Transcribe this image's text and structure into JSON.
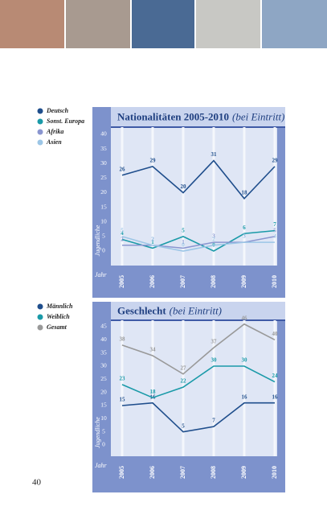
{
  "page_number": "40",
  "chart_data": [
    {
      "type": "line",
      "title": "Nationalitäten 2005-2010",
      "title_note": "(bei Eintritt)",
      "y_axis_label": "Jugendliche",
      "x_axis_label": "Jahr",
      "categories": [
        "2005",
        "2006",
        "2007",
        "2008",
        "2009",
        "2010"
      ],
      "series": [
        {
          "name": "Deutsch",
          "color": "#1f4e8c",
          "values": [
            26,
            29,
            20,
            31,
            18,
            29
          ]
        },
        {
          "name": "Sonst. Europa",
          "color": "#1a9aa8",
          "values": [
            4,
            1,
            5,
            0,
            6,
            7
          ]
        },
        {
          "name": "Afrika",
          "color": "#8a96d0",
          "values": [
            2,
            2,
            1,
            3,
            3,
            5
          ]
        },
        {
          "name": "Asien",
          "color": "#9cc6e6",
          "values": [
            5,
            2,
            0,
            2,
            3,
            3
          ]
        }
      ],
      "ylim": [
        0,
        40
      ],
      "yticks": [
        0,
        5,
        10,
        15,
        20,
        25,
        30,
        35,
        40
      ]
    },
    {
      "type": "line",
      "title": "Geschlecht",
      "title_note": "(bei Eintritt)",
      "y_axis_label": "Jugendliche",
      "x_axis_label": "Jahr",
      "categories": [
        "2005",
        "2006",
        "2007",
        "2008",
        "2009",
        "2010"
      ],
      "series": [
        {
          "name": "Männlich",
          "color": "#1f4e8c",
          "values": [
            15,
            16,
            5,
            7,
            16,
            16
          ]
        },
        {
          "name": "Weiblich",
          "color": "#1a9aa8",
          "values": [
            23,
            18,
            22,
            30,
            30,
            24
          ]
        },
        {
          "name": "Gesamt",
          "color": "#999999",
          "values": [
            38,
            34,
            27,
            37,
            46,
            40
          ]
        }
      ],
      "ylim": [
        0,
        45
      ],
      "yticks": [
        0,
        5,
        10,
        15,
        20,
        25,
        30,
        35,
        40,
        45
      ]
    }
  ]
}
